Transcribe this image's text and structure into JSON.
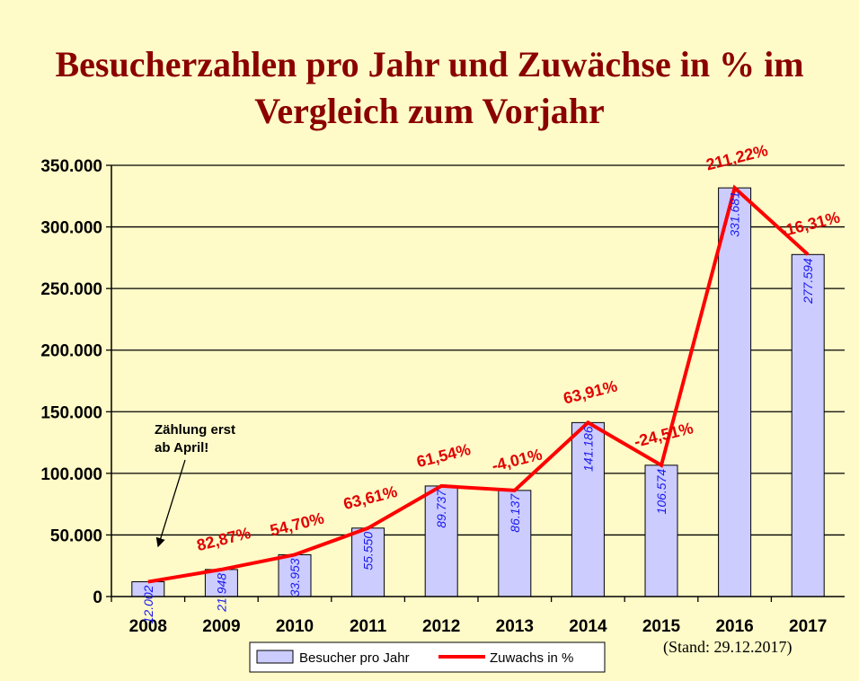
{
  "title_line1": "Besucherzahlen pro Jahr und Zuwächse in % im",
  "title_line2": "Vergleich zum Vorjahr",
  "annotation_line1": "Zählung erst",
  "annotation_line2": "ab April!",
  "stand": "(Stand: 29.12.2017)",
  "colors": {
    "bar": "#ccccff",
    "line": "#ff0000",
    "value_label": "#1a1aee",
    "pct_label": "#e00000",
    "title": "#8b0000",
    "background": "#fffbc8"
  },
  "chart_data": {
    "type": "bar",
    "categories": [
      "2008",
      "2009",
      "2010",
      "2011",
      "2012",
      "2013",
      "2014",
      "2015",
      "2016",
      "2017"
    ],
    "ylim": [
      0,
      350000
    ],
    "yticks": [
      0,
      50000,
      100000,
      150000,
      200000,
      250000,
      300000,
      350000
    ],
    "ytick_labels": [
      "0",
      "50.000",
      "100.000",
      "150.000",
      "200.000",
      "250.000",
      "300.000",
      "350.000"
    ],
    "grid": true,
    "legend_position": "bottom",
    "series": [
      {
        "name": "Besucher pro Jahr",
        "type": "bar",
        "values": [
          12002,
          21948,
          33953,
          55550,
          89737,
          86137,
          141186,
          106574,
          331681,
          277594
        ],
        "labels": [
          "12.002",
          "21.948",
          "33.953",
          "55.550",
          "89.737",
          "86.137",
          "141.186",
          "106.574",
          "331.681",
          "277.594"
        ]
      },
      {
        "name": "Zuwachs in %",
        "type": "line",
        "values": [
          null,
          82.87,
          54.7,
          63.61,
          61.54,
          -4.01,
          63.91,
          -24.51,
          211.22,
          -16.31
        ],
        "labels": [
          "",
          "82,87%",
          "54,70%",
          "63,61%",
          "61,54%",
          "-4,01%",
          "63,91%",
          "-24,51%",
          "211,22%",
          "-16,31%"
        ]
      }
    ]
  }
}
